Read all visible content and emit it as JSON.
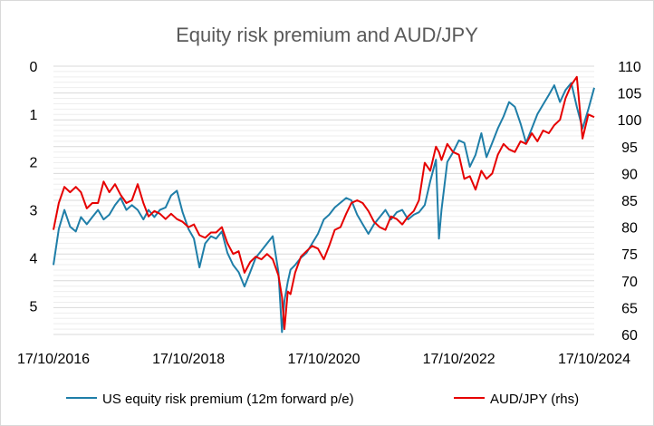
{
  "chart_data": {
    "type": "line",
    "title": "Equity risk premium and AUD/JPY",
    "xlabel": "",
    "ylabel": "",
    "x_ticks": [
      "17/10/2016",
      "17/10/2018",
      "17/10/2020",
      "17/10/2022",
      "17/10/2024"
    ],
    "left_axis": {
      "min": 0,
      "max": 5.6,
      "inverted": true,
      "ticks": [
        0,
        1,
        2,
        3,
        4,
        5
      ]
    },
    "right_axis": {
      "min": 60,
      "max": 110,
      "ticks": [
        60,
        65,
        70,
        75,
        80,
        85,
        90,
        95,
        100,
        105,
        110
      ]
    },
    "grid": "horizontal",
    "legend_position": "bottom",
    "series": [
      {
        "name": "US equity risk premium (12m forward p/e)",
        "axis": "left",
        "color": "#1f7ea8",
        "x": [
          "2016-10-17",
          "2016-11-15",
          "2016-12-15",
          "2017-01-15",
          "2017-02-15",
          "2017-03-15",
          "2017-04-15",
          "2017-05-15",
          "2017-06-15",
          "2017-07-15",
          "2017-08-15",
          "2017-09-15",
          "2017-10-15",
          "2017-11-15",
          "2017-12-15",
          "2018-01-15",
          "2018-02-15",
          "2018-03-15",
          "2018-04-15",
          "2018-05-15",
          "2018-06-15",
          "2018-07-15",
          "2018-08-15",
          "2018-09-15",
          "2018-10-17",
          "2018-11-15",
          "2018-12-15",
          "2019-01-15",
          "2019-02-15",
          "2019-03-15",
          "2019-04-15",
          "2019-05-15",
          "2019-06-15",
          "2019-07-15",
          "2019-08-15",
          "2019-09-15",
          "2019-10-15",
          "2019-11-15",
          "2019-12-15",
          "2020-01-15",
          "2020-02-15",
          "2020-03-05",
          "2020-03-18",
          "2020-04-05",
          "2020-04-20",
          "2020-05-15",
          "2020-06-15",
          "2020-07-15",
          "2020-08-15",
          "2020-09-15",
          "2020-10-17",
          "2020-11-15",
          "2020-12-15",
          "2021-01-15",
          "2021-02-15",
          "2021-03-15",
          "2021-04-15",
          "2021-05-15",
          "2021-06-15",
          "2021-07-15",
          "2021-08-15",
          "2021-09-15",
          "2021-10-15",
          "2021-11-15",
          "2021-12-15",
          "2022-01-15",
          "2022-02-15",
          "2022-03-15",
          "2022-04-15",
          "2022-05-15",
          "2022-06-15",
          "2022-07-01",
          "2022-07-15",
          "2022-08-15",
          "2022-09-15",
          "2022-10-17",
          "2022-11-15",
          "2022-12-15",
          "2023-01-15",
          "2023-02-15",
          "2023-03-15",
          "2023-04-15",
          "2023-05-15",
          "2023-06-15",
          "2023-07-15",
          "2023-08-15",
          "2023-09-15",
          "2023-10-15",
          "2023-11-15",
          "2023-12-15",
          "2024-01-15",
          "2024-02-15",
          "2024-03-15",
          "2024-04-15",
          "2024-05-15",
          "2024-06-15",
          "2024-07-15",
          "2024-08-15",
          "2024-09-15",
          "2024-10-17"
        ],
        "values": [
          4.15,
          3.4,
          3.0,
          3.35,
          3.45,
          3.15,
          3.3,
          3.15,
          3.0,
          3.2,
          3.1,
          2.9,
          2.75,
          3.0,
          2.9,
          3.0,
          3.2,
          3.0,
          3.15,
          3.0,
          2.95,
          2.7,
          2.6,
          3.05,
          3.4,
          3.6,
          4.2,
          3.7,
          3.55,
          3.6,
          3.45,
          3.9,
          4.15,
          4.3,
          4.6,
          4.3,
          4.0,
          3.85,
          3.7,
          3.55,
          4.3,
          5.55,
          4.9,
          4.5,
          4.25,
          4.15,
          4.0,
          3.9,
          3.7,
          3.5,
          3.2,
          3.1,
          2.95,
          2.85,
          2.75,
          2.8,
          3.1,
          3.3,
          3.5,
          3.3,
          3.15,
          3.0,
          3.2,
          3.05,
          3.0,
          3.2,
          3.1,
          3.05,
          2.9,
          2.4,
          1.95,
          3.6,
          3.0,
          2.0,
          1.8,
          1.55,
          1.6,
          2.1,
          1.85,
          1.4,
          1.9,
          1.6,
          1.3,
          1.05,
          0.75,
          0.85,
          1.2,
          1.6,
          1.3,
          1.0,
          0.8,
          0.6,
          0.4,
          0.75,
          0.5,
          0.35,
          0.85,
          1.3,
          0.9,
          0.45
        ]
      },
      {
        "name": "AUD/JPY (rhs)",
        "axis": "right",
        "color": "#e60000",
        "x": [
          "2016-10-17",
          "2016-11-15",
          "2016-12-15",
          "2017-01-15",
          "2017-02-15",
          "2017-03-15",
          "2017-04-15",
          "2017-05-15",
          "2017-06-15",
          "2017-07-15",
          "2017-08-15",
          "2017-09-15",
          "2017-10-15",
          "2017-11-15",
          "2017-12-15",
          "2018-01-15",
          "2018-02-15",
          "2018-03-15",
          "2018-04-15",
          "2018-05-15",
          "2018-06-15",
          "2018-07-15",
          "2018-08-15",
          "2018-09-15",
          "2018-10-17",
          "2018-11-15",
          "2018-12-15",
          "2019-01-15",
          "2019-02-15",
          "2019-03-15",
          "2019-04-15",
          "2019-05-15",
          "2019-06-15",
          "2019-07-15",
          "2019-08-15",
          "2019-09-15",
          "2019-10-15",
          "2019-11-15",
          "2019-12-15",
          "2020-01-15",
          "2020-02-15",
          "2020-03-05",
          "2020-03-18",
          "2020-04-05",
          "2020-04-20",
          "2020-05-15",
          "2020-06-15",
          "2020-07-15",
          "2020-08-15",
          "2020-09-15",
          "2020-10-17",
          "2020-11-15",
          "2020-12-15",
          "2021-01-15",
          "2021-02-15",
          "2021-03-15",
          "2021-04-15",
          "2021-05-15",
          "2021-06-15",
          "2021-07-15",
          "2021-08-15",
          "2021-09-15",
          "2021-10-15",
          "2021-11-15",
          "2021-12-15",
          "2022-01-15",
          "2022-02-15",
          "2022-03-15",
          "2022-04-15",
          "2022-05-15",
          "2022-06-15",
          "2022-07-01",
          "2022-07-15",
          "2022-08-15",
          "2022-09-15",
          "2022-10-17",
          "2022-11-15",
          "2022-12-15",
          "2023-01-15",
          "2023-02-15",
          "2023-03-15",
          "2023-04-15",
          "2023-05-15",
          "2023-06-15",
          "2023-07-15",
          "2023-08-15",
          "2023-09-15",
          "2023-10-15",
          "2023-11-15",
          "2023-12-15",
          "2024-01-15",
          "2024-02-15",
          "2024-03-15",
          "2024-04-15",
          "2024-05-15",
          "2024-06-15",
          "2024-07-15",
          "2024-08-15",
          "2024-09-15",
          "2024-10-17"
        ],
        "values": [
          79.5,
          84.5,
          87.5,
          86.5,
          87.5,
          86.5,
          83.5,
          84.5,
          84.5,
          88.5,
          86.5,
          88.0,
          86.0,
          84.5,
          85.0,
          88.0,
          84.5,
          82.0,
          83.0,
          82.5,
          81.5,
          82.5,
          81.5,
          81.0,
          80.0,
          80.5,
          78.5,
          78.0,
          79.0,
          79.0,
          80.0,
          77.0,
          75.0,
          75.5,
          71.5,
          73.5,
          74.5,
          74.0,
          75.0,
          74.0,
          71.0,
          67.0,
          61.0,
          68.0,
          67.5,
          71.5,
          74.5,
          75.5,
          76.5,
          76.0,
          74.0,
          76.5,
          79.5,
          80.0,
          82.5,
          84.5,
          85.0,
          84.5,
          83.0,
          81.0,
          80.0,
          79.5,
          82.0,
          81.5,
          80.5,
          82.0,
          83.0,
          85.0,
          92.0,
          90.5,
          95.0,
          94.0,
          92.5,
          95.5,
          94.0,
          93.5,
          89.0,
          89.5,
          87.0,
          90.5,
          89.0,
          90.0,
          93.5,
          95.5,
          94.5,
          94.0,
          96.0,
          95.5,
          97.5,
          96.0,
          98.0,
          97.5,
          99.0,
          100.0,
          104.0,
          106.5,
          108.0,
          96.5,
          101.0,
          100.5
        ]
      }
    ]
  }
}
